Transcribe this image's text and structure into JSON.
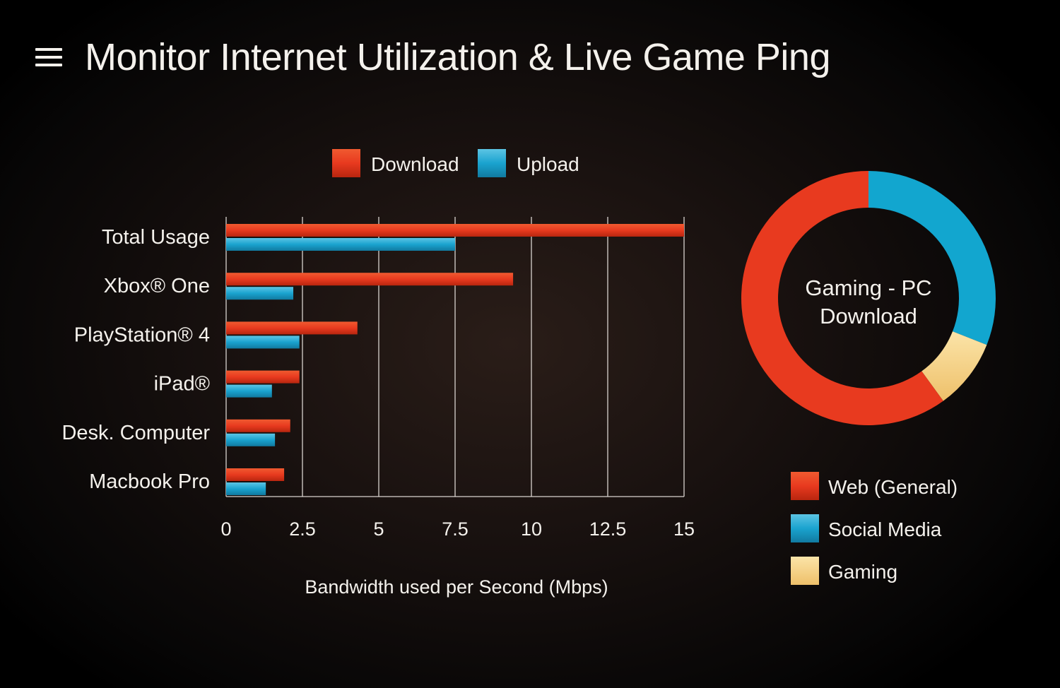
{
  "header": {
    "title": "Monitor Internet Utilization & Live Game Ping",
    "menu_icon": "hamburger-menu-icon"
  },
  "colors": {
    "download": "#e83a1f",
    "upload": "#1aa3cf",
    "web": "#e83a1f",
    "social": "#12a6cf",
    "gaming": "#f6d58a"
  },
  "chart_data": [
    {
      "type": "bar",
      "orientation": "horizontal",
      "categories": [
        "Total Usage",
        "Xbox® One",
        "PlayStation® 4",
        "iPad®",
        "Desk. Computer",
        "Macbook Pro"
      ],
      "series": [
        {
          "name": "Download",
          "values": [
            15,
            9.4,
            4.3,
            2.4,
            2.1,
            1.9
          ]
        },
        {
          "name": "Upload",
          "values": [
            7.5,
            2.2,
            2.4,
            1.5,
            1.6,
            1.3
          ]
        }
      ],
      "xticks": [
        "0",
        "2.5",
        "5",
        "7.5",
        "10",
        "12.5",
        "15"
      ],
      "xlim": [
        0,
        15
      ],
      "xlabel": "Bandwidth used per Second (Mbps)",
      "grid": "vertical",
      "legend": "top"
    },
    {
      "type": "pie",
      "variant": "donut",
      "center_label": [
        "Gaming - PC",
        "Download"
      ],
      "labels": [
        "Social Media",
        "Gaming",
        "Web (General)"
      ],
      "values": [
        31,
        9,
        60
      ],
      "legend": "bottom-right"
    }
  ]
}
